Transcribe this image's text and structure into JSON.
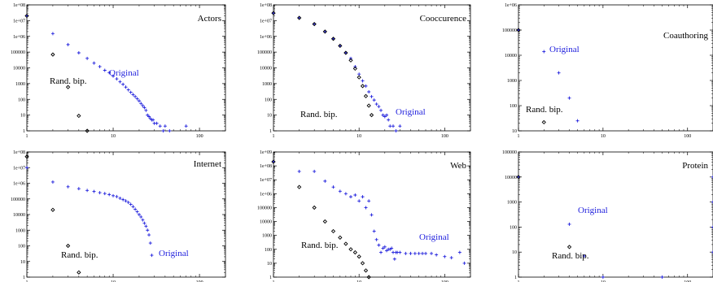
{
  "colors": {
    "original": "#2222dd",
    "randbip": "#000000",
    "axis": "#000000",
    "tick_text": "#000000"
  },
  "chart_data": [
    {
      "type": "scatter",
      "title": "Actors",
      "xscale": "log",
      "yscale": "log",
      "xlim": [
        1,
        200
      ],
      "ylim": [
        1,
        100000000
      ],
      "x_ticks": [
        "1",
        "10",
        "100"
      ],
      "y_ticks": [
        "1",
        "10",
        "100",
        "1000",
        "10000",
        "100000",
        "1e+06",
        "1e+07",
        "1e+08"
      ],
      "grid": false,
      "series": [
        {
          "name": "Original",
          "marker": "plus",
          "points": [
            [
              1,
              20000000
            ],
            [
              2,
              1500000
            ],
            [
              3,
              300000
            ],
            [
              4,
              90000
            ],
            [
              5,
              40000
            ],
            [
              6,
              20000
            ],
            [
              7,
              12000
            ],
            [
              8,
              7000
            ],
            [
              9,
              5000
            ],
            [
              10,
              3000
            ],
            [
              11,
              2000
            ],
            [
              12,
              1300
            ],
            [
              13,
              900
            ],
            [
              14,
              600
            ],
            [
              15,
              400
            ],
            [
              16,
              280
            ],
            [
              17,
              200
            ],
            [
              18,
              150
            ],
            [
              19,
              110
            ],
            [
              20,
              80
            ],
            [
              21,
              55
            ],
            [
              22,
              40
            ],
            [
              23,
              30
            ],
            [
              24,
              20
            ],
            [
              25,
              10
            ],
            [
              26,
              8
            ],
            [
              27,
              6
            ],
            [
              28,
              5
            ],
            [
              29,
              5
            ],
            [
              30,
              3
            ],
            [
              32,
              3
            ],
            [
              35,
              2
            ],
            [
              38,
              1
            ],
            [
              40,
              2
            ],
            [
              45,
              1
            ],
            [
              70,
              2
            ]
          ]
        },
        {
          "name": "Rand. bip.",
          "marker": "diamond",
          "points": [
            [
              1,
              20000000
            ],
            [
              2,
              70000
            ],
            [
              3,
              600
            ],
            [
              4,
              9
            ],
            [
              5,
              1
            ]
          ]
        }
      ]
    },
    {
      "type": "scatter",
      "title": "Cooccurence",
      "xscale": "log",
      "yscale": "log",
      "xlim": [
        1,
        200
      ],
      "ylim": [
        1,
        100000000
      ],
      "x_ticks": [
        "1",
        "10",
        "100"
      ],
      "y_ticks": [
        "1",
        "10",
        "100",
        "1000",
        "10000",
        "100000",
        "1e+06",
        "1e+07",
        "1e+08"
      ],
      "grid": false,
      "series": [
        {
          "name": "Original",
          "marker": "plus",
          "points": [
            [
              1,
              30000000
            ],
            [
              2,
              15000000
            ],
            [
              3,
              6000000
            ],
            [
              4,
              2000000
            ],
            [
              5,
              700000
            ],
            [
              6,
              250000
            ],
            [
              7,
              90000
            ],
            [
              8,
              40000
            ],
            [
              9,
              12000
            ],
            [
              10,
              4000
            ],
            [
              11,
              1500
            ],
            [
              12,
              700
            ],
            [
              13,
              300
            ],
            [
              14,
              150
            ],
            [
              15,
              90
            ],
            [
              16,
              50
            ],
            [
              17,
              35
            ],
            [
              18,
              20
            ],
            [
              19,
              10
            ],
            [
              20,
              8
            ],
            [
              21,
              10
            ],
            [
              22,
              5
            ],
            [
              23,
              2
            ],
            [
              25,
              2
            ],
            [
              27,
              1
            ],
            [
              30,
              2
            ]
          ]
        },
        {
          "name": "Rand. bip.",
          "marker": "diamond",
          "points": [
            [
              1,
              30000000
            ],
            [
              2,
              15000000
            ],
            [
              3,
              6000000
            ],
            [
              4,
              2000000
            ],
            [
              5,
              700000
            ],
            [
              6,
              250000
            ],
            [
              7,
              90000
            ],
            [
              8,
              30000
            ],
            [
              9,
              9000
            ],
            [
              10,
              2500
            ],
            [
              11,
              700
            ],
            [
              12,
              160
            ],
            [
              13,
              40
            ],
            [
              14,
              10
            ]
          ]
        }
      ]
    },
    {
      "type": "scatter",
      "title": "Coauthoring",
      "xscale": "log",
      "yscale": "log",
      "xlim": [
        1,
        200
      ],
      "ylim": [
        10,
        1000000
      ],
      "x_ticks": [
        "1",
        "10",
        "100"
      ],
      "y_ticks": [
        "10",
        "100",
        "1000",
        "10000",
        "100000",
        "1e+06"
      ],
      "grid": false,
      "series": [
        {
          "name": "Original",
          "marker": "plus",
          "points": [
            [
              1,
              100000
            ],
            [
              2,
              14000
            ],
            [
              3,
              2000
            ],
            [
              4,
              200
            ],
            [
              5,
              25
            ]
          ]
        },
        {
          "name": "Rand. bip.",
          "marker": "diamond",
          "points": [
            [
              1,
              100000
            ],
            [
              2,
              22
            ]
          ]
        }
      ]
    },
    {
      "type": "scatter",
      "title": "Internet",
      "xscale": "log",
      "yscale": "log",
      "xlim": [
        1,
        200
      ],
      "ylim": [
        1,
        100000000
      ],
      "x_ticks": [
        "1",
        "10",
        "100"
      ],
      "y_ticks": [
        "1",
        "10",
        "100",
        "1000",
        "10000",
        "100000",
        "1e+06",
        "1e+07",
        "1e+08"
      ],
      "grid": false,
      "series": [
        {
          "name": "Original",
          "marker": "plus",
          "points": [
            [
              1,
              10000000
            ],
            [
              2,
              1200000
            ],
            [
              3,
              600000
            ],
            [
              4,
              450000
            ],
            [
              5,
              350000
            ],
            [
              6,
              300000
            ],
            [
              7,
              250000
            ],
            [
              8,
              220000
            ],
            [
              9,
              190000
            ],
            [
              10,
              160000
            ],
            [
              11,
              140000
            ],
            [
              12,
              110000
            ],
            [
              13,
              90000
            ],
            [
              14,
              75000
            ],
            [
              15,
              60000
            ],
            [
              16,
              45000
            ],
            [
              17,
              32000
            ],
            [
              18,
              22000
            ],
            [
              19,
              15000
            ],
            [
              20,
              10000
            ],
            [
              21,
              7000
            ],
            [
              22,
              4500
            ],
            [
              23,
              2800
            ],
            [
              24,
              1800
            ],
            [
              25,
              1000
            ],
            [
              26,
              500
            ],
            [
              27,
              150
            ],
            [
              28,
              25
            ]
          ]
        },
        {
          "name": "Rand. bip.",
          "marker": "diamond",
          "points": [
            [
              1,
              50000000
            ],
            [
              2,
              20000
            ],
            [
              3,
              100
            ],
            [
              4,
              2
            ]
          ]
        }
      ]
    },
    {
      "type": "scatter",
      "title": "Web",
      "xscale": "log",
      "yscale": "log",
      "xlim": [
        1,
        200
      ],
      "ylim": [
        1,
        1000000000
      ],
      "x_ticks": [
        "1",
        "10",
        "100"
      ],
      "y_ticks": [
        "1",
        "10",
        "100",
        "1000",
        "10000",
        "100000",
        "1e+06",
        "1e+07",
        "1e+08",
        "1e+09"
      ],
      "grid": false,
      "series": [
        {
          "name": "Original",
          "marker": "plus",
          "points": [
            [
              1,
              200000000
            ],
            [
              2,
              40000000
            ],
            [
              3,
              40000000
            ],
            [
              4,
              8000000
            ],
            [
              5,
              3000000
            ],
            [
              6,
              1500000
            ],
            [
              7,
              1000000
            ],
            [
              8,
              600000
            ],
            [
              9,
              800000
            ],
            [
              10,
              300000
            ],
            [
              11,
              600000
            ],
            [
              12,
              100000
            ],
            [
              13,
              300000
            ],
            [
              14,
              30000
            ],
            [
              15,
              2000
            ],
            [
              16,
              500
            ],
            [
              17,
              200
            ],
            [
              18,
              60
            ],
            [
              19,
              120
            ],
            [
              20,
              150
            ],
            [
              21,
              80
            ],
            [
              22,
              100
            ],
            [
              23,
              100
            ],
            [
              24,
              120
            ],
            [
              25,
              60
            ],
            [
              26,
              20
            ],
            [
              27,
              60
            ],
            [
              28,
              60
            ],
            [
              30,
              60
            ],
            [
              35,
              50
            ],
            [
              40,
              50
            ],
            [
              45,
              50
            ],
            [
              50,
              50
            ],
            [
              55,
              50
            ],
            [
              60,
              50
            ],
            [
              70,
              50
            ],
            [
              80,
              40
            ],
            [
              100,
              30
            ],
            [
              120,
              25
            ],
            [
              150,
              60
            ],
            [
              170,
              10
            ]
          ]
        },
        {
          "name": "Rand. bip.",
          "marker": "diamond",
          "points": [
            [
              1,
              200000000
            ],
            [
              2,
              3000000
            ],
            [
              3,
              100000
            ],
            [
              4,
              10000
            ],
            [
              5,
              2000
            ],
            [
              6,
              700
            ],
            [
              7,
              250
            ],
            [
              8,
              100
            ],
            [
              9,
              60
            ],
            [
              10,
              30
            ],
            [
              11,
              10
            ],
            [
              12,
              3
            ],
            [
              13,
              1
            ]
          ]
        }
      ]
    },
    {
      "type": "scatter",
      "title": "Protein",
      "xscale": "log",
      "yscale": "log",
      "xlim": [
        1,
        200
      ],
      "ylim": [
        1,
        100000
      ],
      "x_ticks": [
        "1",
        "10",
        "100"
      ],
      "y_ticks": [
        "1",
        "10",
        "100",
        "1000",
        "10000",
        "100000"
      ],
      "grid": false,
      "series": [
        {
          "name": "Original",
          "marker": "plus",
          "points": [
            [
              1,
              10000
            ],
            [
              4,
              130
            ],
            [
              6,
              7
            ],
            [
              10,
              1
            ],
            [
              50,
              1
            ],
            [
              200,
              10000
            ],
            [
              200,
              1000
            ],
            [
              200,
              100
            ],
            [
              200,
              10
            ]
          ]
        },
        {
          "name": "Rand. bip.",
          "marker": "diamond",
          "points": [
            [
              1,
              10000
            ],
            [
              4,
              16
            ]
          ]
        }
      ]
    }
  ]
}
